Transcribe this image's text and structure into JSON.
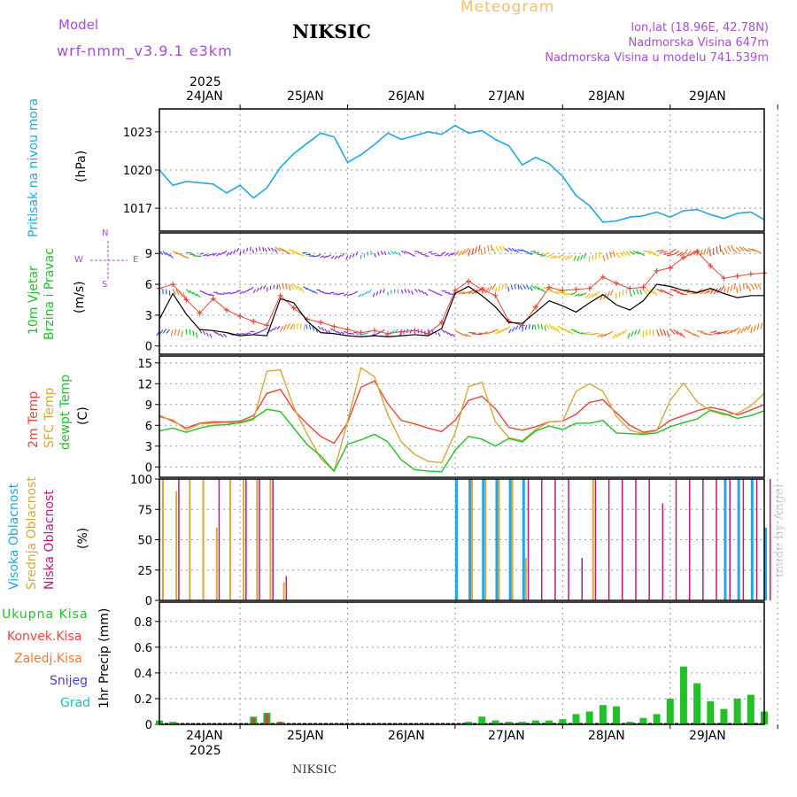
{
  "header": {
    "model_label": "Model",
    "model_name": "wrf-nmm_v3.9.1 e3km",
    "station": "NIKSIC",
    "title": "Meteogram",
    "coords": "lon,lat (18.96E, 42.78N)",
    "elevation": "Nadmorska Visina 647m",
    "model_elevation": "Nadmorska Visina u modelu 741.539m",
    "footer_station": "NIKSIC",
    "watermark": "made by Angel"
  },
  "time_axis": {
    "year": "2025",
    "days": [
      "24JAN",
      "25JAN",
      "26JAN",
      "27JAN",
      "28JAN",
      "29JAN"
    ],
    "start_hour": -18,
    "end_hour": 117
  },
  "colors": {
    "pressure": "#1fa8e8",
    "t2m": "#e8463a",
    "tsfc": "#d8a83a",
    "dewpt": "#22c12a",
    "wind_label": "#22c12a",
    "high_cloud": "#1fa8e8",
    "mid_cloud": "#d8a83a",
    "low_cloud": "#c2187a",
    "rain": "#22c12a",
    "convective": "#e8463a",
    "freezing": "#f07b2a",
    "snow": "#4040e0",
    "graupel": "#22c0b0",
    "wind_speed": "#000000",
    "gust": "#e8463a"
  },
  "chart_data": [
    {
      "type": "line",
      "title": "Pritisak na nivou mora",
      "ylabel": "(hPa)",
      "yticks": [
        1017,
        1020,
        1023
      ],
      "ylim": [
        1015.2,
        1024.8
      ],
      "x_hours": [
        -18,
        -15,
        -12,
        -9,
        -6,
        -3,
        0,
        3,
        6,
        9,
        12,
        15,
        18,
        21,
        24,
        27,
        30,
        33,
        36,
        39,
        42,
        45,
        48,
        51,
        54,
        57,
        60,
        63,
        66,
        69,
        72,
        75,
        78,
        81,
        84,
        87,
        90,
        93,
        96,
        99,
        102,
        105,
        108,
        111,
        114,
        117
      ],
      "series": [
        {
          "name": "pressure",
          "values": [
            1020,
            1018.8,
            1019.1,
            1019,
            1018.9,
            1018.2,
            1018.8,
            1017.8,
            1018.6,
            1020.2,
            1021.3,
            1022.1,
            1022.9,
            1022.6,
            1020.6,
            1021.2,
            1022,
            1022.9,
            1022.4,
            1022.7,
            1023,
            1022.8,
            1023.5,
            1022.9,
            1023.1,
            1022.4,
            1021.9,
            1020.4,
            1021,
            1020.5,
            1019.5,
            1018,
            1017.2,
            1015.9,
            1016,
            1016.3,
            1016.4,
            1016.7,
            1016.3,
            1016.8,
            1016.9,
            1016.5,
            1016.2,
            1016.6,
            1016.7,
            1016.1
          ]
        }
      ]
    },
    {
      "type": "line",
      "title": "10m Vjetar Brzina i Pravac",
      "ylabel": "(m/s)",
      "wind_legend": {
        "north": "N",
        "south": "S",
        "east": "E",
        "west": "W"
      },
      "yticks": [
        0,
        3,
        6,
        9
      ],
      "ylim": [
        -0.8,
        11
      ],
      "x_hours": [
        -18,
        -15,
        -12,
        -9,
        -6,
        -3,
        0,
        3,
        6,
        9,
        12,
        15,
        18,
        21,
        24,
        27,
        30,
        33,
        36,
        39,
        42,
        45,
        48,
        51,
        54,
        57,
        60,
        63,
        66,
        69,
        72,
        75,
        78,
        81,
        84,
        87,
        90,
        93,
        96,
        99,
        102,
        105,
        108,
        111,
        114,
        117
      ],
      "series": [
        {
          "name": "wind_speed",
          "values": [
            2.6,
            5.1,
            3.1,
            1.6,
            1.5,
            1.3,
            1.0,
            1.1,
            1.0,
            4.6,
            4.2,
            2.4,
            1.3,
            1.2,
            1.0,
            0.9,
            1.0,
            0.9,
            1.0,
            1.1,
            1.0,
            1.7,
            5.1,
            5.8,
            4.9,
            3.8,
            2.3,
            2.2,
            3.3,
            4.4,
            3.9,
            3.3,
            4.2,
            5.0,
            4.0,
            3.5,
            4.4,
            6.0,
            5.8,
            5.4,
            5.2,
            5.6,
            5.1,
            4.7,
            4.9,
            4.9
          ]
        },
        {
          "name": "gust",
          "values": [
            5.6,
            6.0,
            4.5,
            3.2,
            4.6,
            3.5,
            2.9,
            2.4,
            2.0,
            4.9,
            3.7,
            2.6,
            2.3,
            1.9,
            1.6,
            1.3,
            1.5,
            1.2,
            1.4,
            1.5,
            1.2,
            2.3,
            5.4,
            6.3,
            5.5,
            4.9,
            2.4,
            2.0,
            3.8,
            5.7,
            5.4,
            5.5,
            5.6,
            6.7,
            6.1,
            5.6,
            5.7,
            7.3,
            7.6,
            8.6,
            9.2,
            7.8,
            6.6,
            6.8,
            7.0,
            7.1
          ]
        }
      ]
    },
    {
      "type": "line",
      "title": "2m Temp / SFC Temp / dewpt Temp",
      "ylabel": "(C)",
      "yticks": [
        0,
        3,
        6,
        9,
        12,
        15
      ],
      "ylim": [
        -1.5,
        16
      ],
      "x_hours": [
        -18,
        -15,
        -12,
        -9,
        -6,
        -3,
        0,
        3,
        6,
        9,
        12,
        15,
        18,
        21,
        24,
        27,
        30,
        33,
        36,
        39,
        42,
        45,
        48,
        51,
        54,
        57,
        60,
        63,
        66,
        69,
        72,
        75,
        78,
        81,
        84,
        87,
        90,
        93,
        96,
        99,
        102,
        105,
        108,
        111,
        114,
        117
      ],
      "series": [
        {
          "name": "2m Temp",
          "values": [
            7.4,
            6.6,
            5.6,
            6.3,
            6.5,
            6.5,
            6.6,
            7.4,
            10.6,
            11.2,
            8.2,
            6.2,
            4.4,
            3.4,
            6.4,
            11.5,
            12.4,
            9.1,
            6.7,
            6.2,
            5.6,
            5.1,
            6.7,
            9.6,
            10.2,
            8.4,
            5.7,
            5.3,
            5.8,
            6.5,
            6.6,
            7.6,
            9.3,
            9.7,
            7.8,
            6.0,
            5.0,
            5.3,
            6.7,
            7.4,
            8.1,
            8.6,
            8.2,
            7.5,
            8.2,
            9.0
          ]
        },
        {
          "name": "SFC Temp",
          "values": [
            7.2,
            6.8,
            5.3,
            6.2,
            6.3,
            6.4,
            6.3,
            6.8,
            13.8,
            14.0,
            8.6,
            4.7,
            1.2,
            -0.6,
            6.6,
            14.3,
            13.0,
            7.5,
            3.6,
            1.8,
            0.8,
            0.6,
            4.9,
            11.6,
            12.2,
            6.5,
            4.2,
            3.8,
            5.4,
            6.5,
            6.6,
            10.9,
            12.0,
            10.9,
            7.3,
            5.3,
            4.8,
            5.2,
            9.6,
            12.1,
            9.4,
            8.1,
            7.5,
            7.7,
            8.8,
            10.6
          ]
        },
        {
          "name": "dewpt Temp",
          "values": [
            5.2,
            5.6,
            5.0,
            5.6,
            6.0,
            6.1,
            6.4,
            7.0,
            8.3,
            8.0,
            5.6,
            3.2,
            1.6,
            -0.6,
            3.3,
            3.9,
            4.7,
            3.6,
            1.0,
            -0.4,
            -0.6,
            -0.7,
            2.4,
            4.4,
            4.0,
            3.0,
            4.1,
            3.6,
            5.2,
            5.9,
            5.4,
            6.3,
            6.3,
            6.7,
            4.9,
            4.8,
            4.7,
            4.9,
            5.8,
            6.4,
            6.9,
            8.2,
            7.7,
            7.0,
            7.4,
            8.1
          ]
        }
      ]
    },
    {
      "type": "bar",
      "title": "Visoka / Srednja / Niska Oblacnost",
      "ylabel": "(%)",
      "yticks": [
        0,
        25,
        50,
        75,
        100
      ],
      "ylim": [
        0,
        100
      ],
      "x_hours": [
        -18,
        -15,
        -12,
        -9,
        -6,
        -3,
        0,
        3,
        6,
        9,
        12,
        15,
        18,
        21,
        24,
        27,
        30,
        33,
        36,
        39,
        42,
        45,
        48,
        51,
        54,
        57,
        60,
        63,
        66,
        69,
        72,
        75,
        78,
        81,
        84,
        87,
        90,
        93,
        96,
        99,
        102,
        105,
        108,
        111,
        114,
        117
      ],
      "series": [
        {
          "name": "Visoka Oblacnost",
          "values": [
            0,
            0,
            0,
            0,
            0,
            0,
            0,
            0,
            0,
            0,
            0,
            0,
            0,
            0,
            0,
            0,
            0,
            0,
            0,
            0,
            0,
            0,
            100,
            100,
            100,
            100,
            100,
            100,
            0,
            0,
            0,
            0,
            0,
            0,
            0,
            0,
            0,
            0,
            0,
            0,
            0,
            0,
            100,
            100,
            100,
            60
          ]
        },
        {
          "name": "Srednja Oblacnost",
          "values": [
            100,
            90,
            100,
            100,
            60,
            100,
            100,
            100,
            100,
            15,
            0,
            0,
            0,
            0,
            0,
            0,
            0,
            0,
            0,
            0,
            0,
            0,
            0,
            100,
            100,
            100,
            100,
            35,
            0,
            0,
            0,
            0,
            100,
            0,
            0,
            0,
            0,
            0,
            0,
            0,
            0,
            0,
            0,
            0,
            0,
            0
          ]
        },
        {
          "name": "Niska Oblacnost",
          "values": [
            0,
            100,
            0,
            0,
            100,
            0,
            100,
            100,
            100,
            20,
            0,
            0,
            0,
            0,
            0,
            0,
            0,
            0,
            0,
            0,
            0,
            0,
            0,
            0,
            0,
            0,
            0,
            100,
            100,
            100,
            100,
            35,
            100,
            100,
            100,
            100,
            100,
            80,
            100,
            100,
            100,
            100,
            100,
            100,
            100,
            100
          ]
        }
      ]
    },
    {
      "type": "bar",
      "title": "1hr Precip",
      "ylabel": "1hr Precip (mm)",
      "legend": [
        "Ukupna Kisa",
        "Konvek.Kisa",
        "Zaledj.Kisa",
        "Snijeg",
        "Grad"
      ],
      "yticks": [
        0,
        0.2,
        0.4,
        0.6,
        0.8
      ],
      "ylim": [
        0,
        0.95
      ],
      "x_hours": [
        -18,
        -15,
        -12,
        -9,
        -6,
        -3,
        0,
        3,
        6,
        9,
        12,
        15,
        18,
        21,
        24,
        27,
        30,
        33,
        36,
        39,
        42,
        45,
        48,
        51,
        54,
        57,
        60,
        63,
        66,
        69,
        72,
        75,
        78,
        81,
        84,
        87,
        90,
        93,
        96,
        99,
        102,
        105,
        108,
        111,
        114,
        117
      ],
      "series": [
        {
          "name": "Ukupna Kisa",
          "values": [
            0.03,
            0.02,
            0,
            0,
            0,
            0,
            0,
            0.06,
            0.09,
            0.02,
            0,
            0,
            0,
            0,
            0,
            0,
            0,
            0,
            0,
            0,
            0,
            0,
            0,
            0.02,
            0.06,
            0.03,
            0.02,
            0.02,
            0.03,
            0.03,
            0.04,
            0.08,
            0.1,
            0.15,
            0.14,
            0.02,
            0.05,
            0.08,
            0.2,
            0.45,
            0.32,
            0.18,
            0.12,
            0.2,
            0.23,
            0.1
          ]
        },
        {
          "name": "Konvek.Kisa",
          "values": [
            0,
            0,
            0,
            0,
            0,
            0,
            0,
            0.05,
            0.08,
            0.02,
            0,
            0,
            0,
            0,
            0,
            0,
            0,
            0,
            0,
            0,
            0,
            0,
            0,
            0,
            0,
            0,
            0,
            0,
            0,
            0,
            0,
            0,
            0,
            0,
            0,
            0,
            0,
            0,
            0,
            0,
            0,
            0,
            0,
            0,
            0,
            0
          ]
        }
      ]
    }
  ]
}
